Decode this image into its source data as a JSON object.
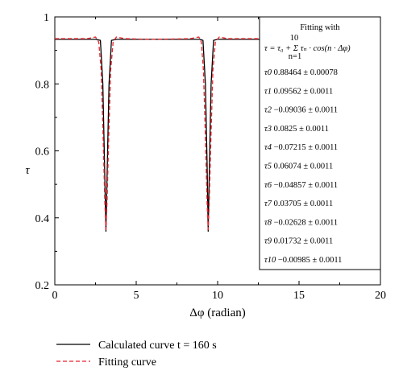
{
  "chart_data": {
    "type": "line",
    "xlabel": "Δφ (radian)",
    "ylabel": "τ",
    "xlim": [
      0,
      20
    ],
    "ylim": [
      0.2,
      1.0
    ],
    "xticks": [
      "0",
      "5",
      "10",
      "15",
      "20"
    ],
    "yticks": [
      "0.2",
      "0.4",
      "0.6",
      "0.8",
      "1"
    ],
    "grid": false,
    "legend_position": "bottom-left, below plot",
    "series": [
      {
        "name": "Calculated curve t = 160 s",
        "style": "solid",
        "color": "#000000",
        "x": [
          0,
          2.5,
          2.8,
          2.95,
          3.05,
          3.14,
          3.23,
          3.33,
          3.48,
          3.8,
          6.0,
          8.9,
          9.1,
          9.25,
          9.35,
          9.42,
          9.5,
          9.6,
          9.75,
          10.0,
          12.6
        ],
        "y": [
          0.933,
          0.933,
          0.93,
          0.8,
          0.57,
          0.36,
          0.57,
          0.8,
          0.93,
          0.933,
          0.933,
          0.933,
          0.93,
          0.8,
          0.57,
          0.36,
          0.57,
          0.8,
          0.93,
          0.933,
          0.933
        ]
      },
      {
        "name": "Fitting curve",
        "style": "dashed",
        "color": "#e8222a",
        "x": [
          0,
          2.0,
          2.5,
          2.7,
          2.85,
          2.97,
          3.07,
          3.14,
          3.21,
          3.31,
          3.43,
          3.58,
          3.78,
          4.3,
          6.0,
          8.3,
          8.85,
          9.0,
          9.13,
          9.25,
          9.35,
          9.42,
          9.49,
          9.59,
          9.71,
          9.86,
          10.1,
          10.6,
          12.6
        ],
        "y": [
          0.935,
          0.935,
          0.94,
          0.925,
          0.84,
          0.64,
          0.45,
          0.365,
          0.45,
          0.64,
          0.84,
          0.925,
          0.94,
          0.935,
          0.933,
          0.935,
          0.94,
          0.925,
          0.84,
          0.64,
          0.45,
          0.365,
          0.45,
          0.64,
          0.84,
          0.925,
          0.94,
          0.935,
          0.935
        ]
      }
    ],
    "fit_box": {
      "title": "Fitting with",
      "equation": "τ = τ₀ + Σ τₙ · cos(n · Δφ)",
      "sum_upper": "10",
      "sum_lower": "n=1",
      "coefficients": [
        {
          "symbol": "τ0",
          "value": "0.88464 ± 0.00078"
        },
        {
          "symbol": "τ1",
          "value": "0.09562 ± 0.0011"
        },
        {
          "symbol": "τ2",
          "value": "−0.09036 ± 0.0011"
        },
        {
          "symbol": "τ3",
          "value": "0.0825 ± 0.0011"
        },
        {
          "symbol": "τ4",
          "value": "−0.07215 ± 0.0011"
        },
        {
          "symbol": "τ5",
          "value": "0.06074 ± 0.0011"
        },
        {
          "symbol": "τ6",
          "value": "−0.04857 ± 0.0011"
        },
        {
          "symbol": "τ7",
          "value": "0.03705 ± 0.0011"
        },
        {
          "symbol": "τ8",
          "value": "−0.02628 ± 0.0011"
        },
        {
          "symbol": "τ9",
          "value": "0.01732 ± 0.0011"
        },
        {
          "symbol": "τ10",
          "value": "−0.00985 ± 0.0011"
        }
      ]
    }
  }
}
